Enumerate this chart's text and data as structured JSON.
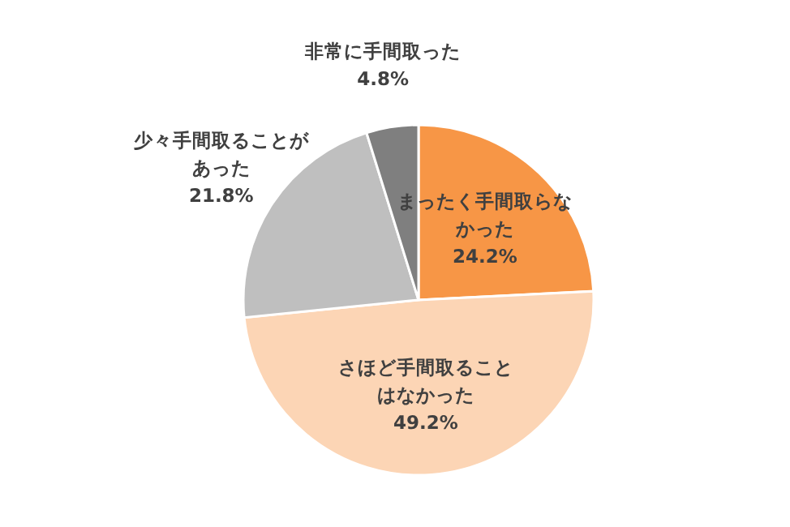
{
  "chart_data": {
    "type": "pie",
    "categories": [
      "まったく手間取らなかった",
      "さほど手間取ることはなかった",
      "少々手間取ることがあった",
      "非常に手間取った"
    ],
    "values": [
      24.2,
      49.2,
      21.8,
      4.8
    ],
    "value_labels": [
      "24.2%",
      "49.2%",
      "21.8%",
      "4.8%"
    ],
    "colors": [
      "#f79646",
      "#fcd5b5",
      "#bfbfbf",
      "#7f7f7f"
    ]
  }
}
